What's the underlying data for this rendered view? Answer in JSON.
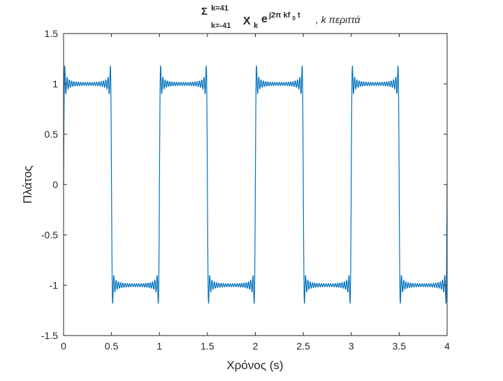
{
  "chart_data": {
    "type": "line",
    "title": {
      "sigma": "Σ",
      "upper_limit": "k=41",
      "lower_limit": "k=-41",
      "coef": "X",
      "coef_sub": "k",
      "base": "e",
      "exp_main": "j2π kf",
      "exp_sub": "0",
      "exp_tail": " t",
      "note": ", k περιττά"
    },
    "xlabel": "Χρόνος (s)",
    "ylabel": "Πλάτος",
    "xlim": [
      0,
      4
    ],
    "ylim": [
      -1.5,
      1.5
    ],
    "xticks": [
      0,
      0.5,
      1,
      1.5,
      2,
      2.5,
      3,
      3.5,
      4
    ],
    "xtick_labels": [
      "0",
      "0.5",
      "1",
      "1.5",
      "2",
      "2.5",
      "3",
      "3.5",
      "4"
    ],
    "yticks": [
      -1.5,
      -1,
      -0.5,
      0,
      0.5,
      1,
      1.5
    ],
    "ytick_labels": [
      "-1.5",
      "-1",
      "-0.5",
      "0",
      "0.5",
      "1",
      "1.5"
    ],
    "grid": false,
    "legend": "none",
    "series": [
      {
        "signal": "square-wave Fourier partial sum (odd harmonics)",
        "period": 1,
        "amplitude": 1,
        "k_max": 41,
        "sample_count": 3000,
        "color": "#0072BD"
      }
    ]
  }
}
